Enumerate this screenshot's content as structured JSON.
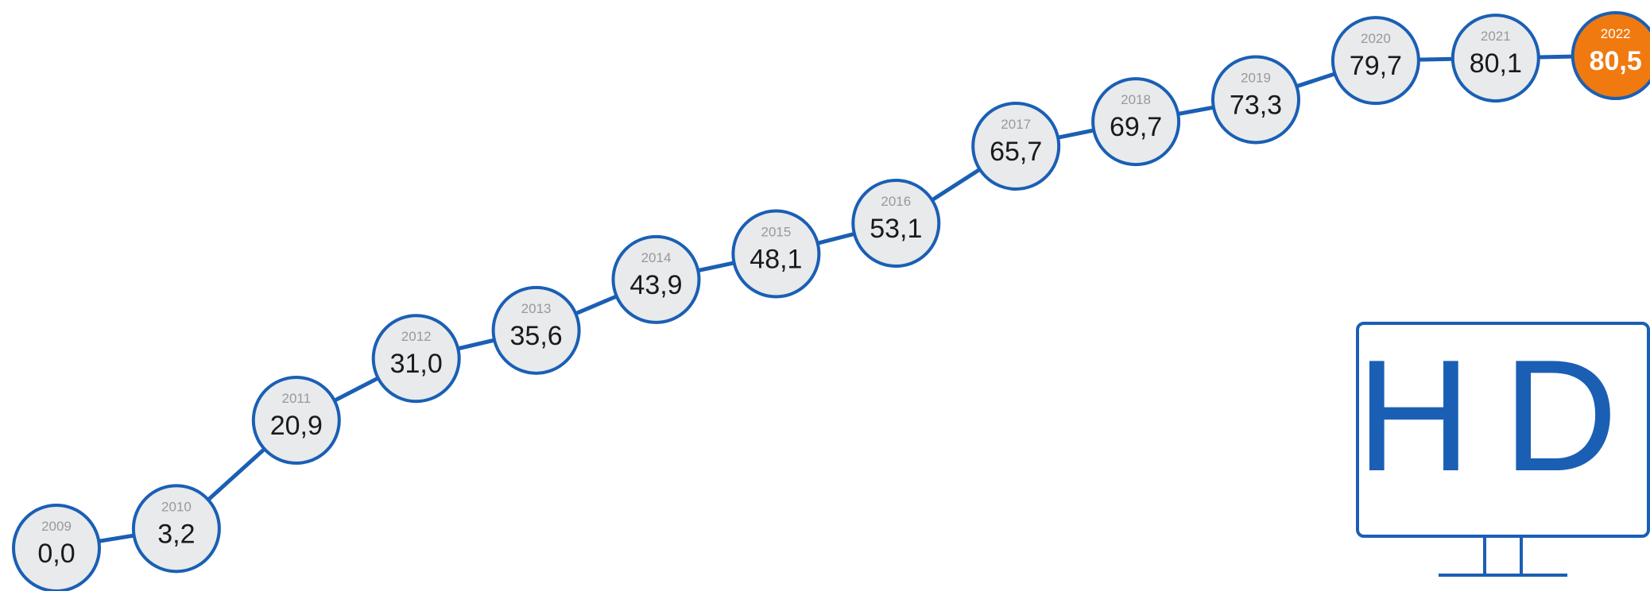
{
  "chart_data": {
    "type": "line",
    "title": "",
    "xlabel": "",
    "ylabel": "",
    "x": [
      "2009",
      "2010",
      "2011",
      "2012",
      "2013",
      "2014",
      "2015",
      "2016",
      "2017",
      "2018",
      "2019",
      "2020",
      "2021",
      "2022"
    ],
    "series": [
      {
        "values": [
          0.0,
          3.2,
          20.9,
          31.0,
          35.6,
          43.9,
          48.1,
          53.1,
          65.7,
          69.7,
          73.3,
          79.7,
          80.1,
          80.5
        ]
      }
    ],
    "value_labels": [
      "0,0",
      "3,2",
      "20,9",
      "31,0",
      "35,6",
      "43,9",
      "48,1",
      "53,1",
      "65,7",
      "69,7",
      "73,3",
      "79,7",
      "80,1",
      "80,5"
    ],
    "highlight_index": 13,
    "ylim": [
      0,
      80.5
    ],
    "grid": false,
    "legend": "none",
    "colors": {
      "line": "#1a5fb4",
      "node_fill": "#e8eaec",
      "node_stroke": "#1a5fb4",
      "highlight_fill": "#f07a10",
      "highlight_stroke": "#1a5fb4",
      "year_text": "#999999",
      "value_text": "#1a1a1a",
      "highlight_text": "#ffffff"
    }
  },
  "icon": {
    "name": "hd-monitor-icon",
    "label": "HD"
  }
}
